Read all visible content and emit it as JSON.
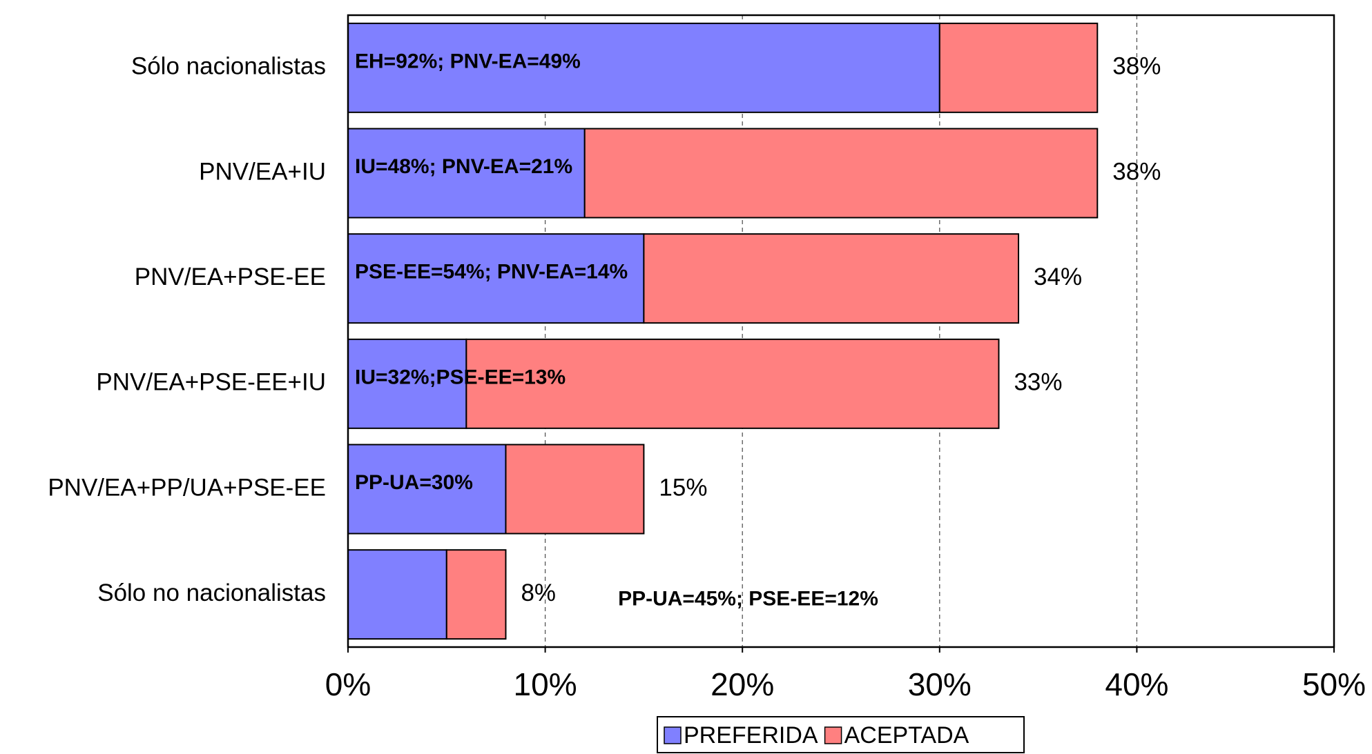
{
  "chart_data": {
    "type": "stacked-bar-horizontal",
    "categories": [
      "Sólo nacionalistas",
      "PNV/EA+IU",
      "PNV/EA+PSE-EE",
      "PNV/EA+PSE-EE+IU",
      "PNV/EA+PP/UA+PSE-EE",
      "Sólo no nacionalistas"
    ],
    "series": [
      {
        "name": "PREFERIDA",
        "color": "#8080ff",
        "values": [
          30,
          12,
          15,
          6,
          8,
          5
        ]
      },
      {
        "name": "ACEPTADA",
        "color": "#ff8080",
        "values": [
          8,
          26,
          19,
          27,
          7,
          3
        ]
      }
    ],
    "total_labels": [
      "38%",
      "38%",
      "34%",
      "33%",
      "15%",
      "8%"
    ],
    "annotations": [
      "EH=92%; PNV-EA=49%",
      "IU=48%; PNV-EA=21%",
      "PSE-EE=54%; PNV-EA=14%",
      "IU=32%;PSE-EE=13%",
      "PP-UA=30%",
      "PP-UA=45%; PSE-EE=12%"
    ],
    "xlim": [
      0,
      50
    ],
    "xticks": [
      {
        "value": 0,
        "label": "0%"
      },
      {
        "value": 10,
        "label": "10%"
      },
      {
        "value": 20,
        "label": "20%"
      },
      {
        "value": 30,
        "label": "30%"
      },
      {
        "value": 40,
        "label": "40%"
      },
      {
        "value": 50,
        "label": "50%"
      }
    ],
    "grid": true,
    "legend": "bottom"
  }
}
